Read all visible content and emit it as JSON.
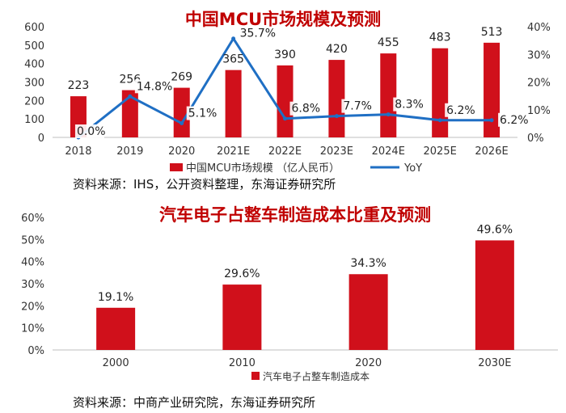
{
  "chart_data": [
    {
      "type": "bar+line",
      "title": "中国MCU市场规模及预测",
      "categories": [
        "2018",
        "2019",
        "2020",
        "2021E",
        "2022E",
        "2023E",
        "2024E",
        "2025E",
        "2026E"
      ],
      "series": [
        {
          "name": "中国MCU市场规模 （亿人民币）",
          "kind": "bar",
          "axis": "left",
          "color": "#d0101b",
          "values": [
            223,
            256,
            269,
            365,
            390,
            420,
            455,
            483,
            513
          ],
          "labels": [
            "223",
            "256",
            "269",
            "365",
            "390",
            "420",
            "455",
            "483",
            "513"
          ]
        },
        {
          "name": "YoY",
          "kind": "line",
          "axis": "right",
          "color": "#1f6fc4",
          "values": [
            0.0,
            14.8,
            5.1,
            35.7,
            6.8,
            7.7,
            8.3,
            6.2,
            6.2
          ],
          "labels": [
            "0.0%",
            "14.8%",
            "5.1%",
            "35.7%",
            "6.8%",
            "7.7%",
            "8.3%",
            "6.2%",
            "6.2%"
          ]
        }
      ],
      "left_axis": {
        "min": 0,
        "max": 600,
        "ticks": [
          "0",
          "100",
          "200",
          "300",
          "400",
          "500",
          "600"
        ]
      },
      "right_axis": {
        "min": 0,
        "max": 40,
        "ticks": [
          "0%",
          "10%",
          "20%",
          "30%",
          "40%"
        ]
      },
      "source": "资料来源：IHS，公开资料整理，东海证券研究所"
    },
    {
      "type": "bar",
      "title": "汽车电子占整车制造成本比重及预测",
      "categories": [
        "2000",
        "2010",
        "2020",
        "2030E"
      ],
      "series": [
        {
          "name": "汽车电子占整车制造成本",
          "color": "#d0101b",
          "values": [
            19.1,
            29.6,
            34.3,
            49.6
          ],
          "labels": [
            "19.1%",
            "29.6%",
            "34.3%",
            "49.6%"
          ]
        }
      ],
      "y_axis": {
        "min": 0,
        "max": 60,
        "ticks": [
          "0%",
          "10%",
          "20%",
          "30%",
          "40%",
          "50%",
          "60%"
        ]
      },
      "source": "资料来源：中商产业研究院，东海证券研究所"
    }
  ]
}
